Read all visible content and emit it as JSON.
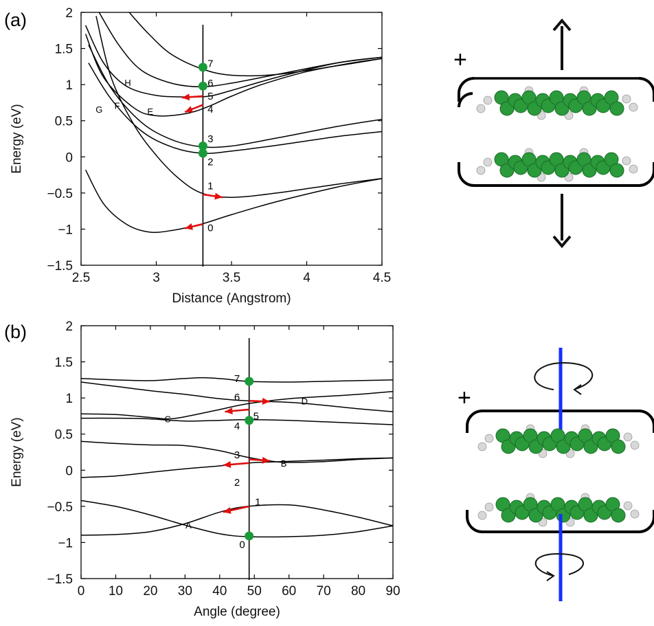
{
  "figure": {
    "panel_a_label": "(a)",
    "panel_b_label": "(b)",
    "plus_a": "+",
    "plus_b": "+",
    "colors": {
      "curve": "#000000",
      "arrow": "#e01010",
      "marker": "#1a9a3a",
      "axis_blue": "#1530ff",
      "carbon": "#2a9a3a",
      "hydrogen": "#d8d8d8"
    }
  },
  "chart_data": [
    {
      "type": "line",
      "xlabel": "Distance (Angstrom)",
      "ylabel": "Energy (eV)",
      "xlim": [
        2.5,
        4.5
      ],
      "ylim": [
        -1.5,
        2
      ],
      "xticks": [
        "2.5",
        "3",
        "3.5",
        "4",
        "4.5"
      ],
      "yticks": [
        "2",
        "1.5",
        "1",
        "0.5",
        "0",
        "−0.5",
        "−1",
        "−1.5"
      ],
      "marker_x": 3.31,
      "series": [
        {
          "x": [
            2.53,
            2.65,
            2.8,
            2.95,
            3.1,
            3.3,
            3.5,
            3.8,
            4.2,
            4.5
          ],
          "y": [
            -0.18,
            -0.65,
            -0.93,
            -1.04,
            -1.02,
            -0.93,
            -0.8,
            -0.62,
            -0.42,
            -0.3
          ]
        },
        {
          "x": [
            2.6,
            2.7,
            2.85,
            3.0,
            3.15,
            3.3,
            3.5,
            3.8,
            4.2,
            4.5
          ],
          "y": [
            1.95,
            1.1,
            0.45,
            0.02,
            -0.3,
            -0.5,
            -0.56,
            -0.5,
            -0.38,
            -0.3
          ]
        },
        {
          "x": [
            2.55,
            2.7,
            2.9,
            3.1,
            3.3,
            3.5,
            3.8,
            4.2,
            4.5
          ],
          "y": [
            1.3,
            0.8,
            0.36,
            0.14,
            0.05,
            0.08,
            0.16,
            0.28,
            0.35
          ]
        },
        {
          "x": [
            2.55,
            2.7,
            2.9,
            3.1,
            3.3,
            3.5,
            3.8,
            4.2,
            4.5
          ],
          "y": [
            1.55,
            0.95,
            0.48,
            0.24,
            0.14,
            0.15,
            0.26,
            0.42,
            0.52
          ]
        },
        {
          "x": [
            2.53,
            2.65,
            2.85,
            3.0,
            3.2,
            3.35,
            3.5,
            3.7,
            4.0,
            4.3,
            4.5
          ],
          "y": [
            1.7,
            1.1,
            0.68,
            0.57,
            0.6,
            0.7,
            0.84,
            1.0,
            1.18,
            1.3,
            1.36
          ]
        },
        {
          "x": [
            2.53,
            2.65,
            2.8,
            3.0,
            3.2,
            3.35,
            3.5,
            3.8,
            4.2,
            4.5
          ],
          "y": [
            1.82,
            1.3,
            0.98,
            0.85,
            0.83,
            0.84,
            0.92,
            1.1,
            1.3,
            1.38
          ]
        },
        {
          "x": [
            2.62,
            2.75,
            2.9,
            3.1,
            3.3,
            3.5,
            3.8,
            4.2,
            4.5
          ],
          "y": [
            2.0,
            1.55,
            1.2,
            1.02,
            0.97,
            1.02,
            1.14,
            1.3,
            1.38
          ]
        },
        {
          "x": [
            2.82,
            2.95,
            3.1,
            3.3,
            3.5,
            3.8,
            4.2,
            4.5
          ],
          "y": [
            2.0,
            1.7,
            1.42,
            1.22,
            1.13,
            1.14,
            1.26,
            1.36
          ]
        }
      ],
      "points": [
        {
          "x": 3.31,
          "y": 1.24
        },
        {
          "x": 3.31,
          "y": 0.98
        },
        {
          "x": 3.31,
          "y": 0.15
        },
        {
          "x": 3.31,
          "y": 0.05
        }
      ],
      "arrows": [
        {
          "x1": 3.31,
          "y1": 0.84,
          "x2": 3.17,
          "y2": 0.82
        },
        {
          "x1": 3.31,
          "y1": 0.72,
          "x2": 3.19,
          "y2": 0.62
        },
        {
          "x1": 3.31,
          "y1": -0.52,
          "x2": 3.44,
          "y2": -0.56
        },
        {
          "x1": 3.31,
          "y1": -0.93,
          "x2": 3.19,
          "y2": -0.99
        }
      ],
      "annotations": [
        {
          "text": "7",
          "x": 3.36,
          "y": 1.29,
          "size": "num"
        },
        {
          "text": "6",
          "x": 3.36,
          "y": 1.02,
          "size": "num"
        },
        {
          "text": "5",
          "x": 3.36,
          "y": 0.84,
          "size": "num"
        },
        {
          "text": "4",
          "x": 3.36,
          "y": 0.66,
          "size": "num"
        },
        {
          "text": "3",
          "x": 3.36,
          "y": 0.25,
          "size": "num"
        },
        {
          "text": "2",
          "x": 3.36,
          "y": -0.07,
          "size": "num"
        },
        {
          "text": "1",
          "x": 3.36,
          "y": -0.4,
          "size": "num"
        },
        {
          "text": "0",
          "x": 3.36,
          "y": -0.98,
          "size": "num"
        },
        {
          "text": "H",
          "x": 2.81,
          "y": 1.03,
          "size": "small"
        },
        {
          "text": "G",
          "x": 2.62,
          "y": 0.66,
          "size": "small"
        },
        {
          "text": "F",
          "x": 2.74,
          "y": 0.71,
          "size": "small"
        },
        {
          "text": "E",
          "x": 2.96,
          "y": 0.63,
          "size": "small"
        }
      ]
    },
    {
      "type": "line",
      "xlabel": "Angle (degree)",
      "ylabel": "Energy (eV)",
      "xlim": [
        0,
        90
      ],
      "ylim": [
        -1.5,
        2
      ],
      "xticks": [
        "0",
        "10",
        "20",
        "30",
        "40",
        "50",
        "60",
        "70",
        "80",
        "90"
      ],
      "yticks": [
        "2",
        "1.5",
        "1",
        "0.5",
        "0",
        "−0.5",
        "−1",
        "−1.5"
      ],
      "marker_x": 48.5,
      "series": [
        {
          "x": [
            0,
            10,
            20,
            30,
            40,
            48,
            60,
            70,
            80,
            90
          ],
          "y": [
            -0.42,
            -0.5,
            -0.62,
            -0.76,
            -0.88,
            -0.92,
            -0.92,
            -0.9,
            -0.85,
            -0.77
          ]
        },
        {
          "x": [
            0,
            10,
            20,
            30,
            40,
            48,
            60,
            70,
            80,
            90
          ],
          "y": [
            -0.9,
            -0.89,
            -0.85,
            -0.74,
            -0.58,
            -0.5,
            -0.48,
            -0.55,
            -0.65,
            -0.77
          ]
        },
        {
          "x": [
            0,
            10,
            20,
            30,
            40,
            48,
            58,
            70,
            80,
            90
          ],
          "y": [
            -0.1,
            -0.08,
            -0.03,
            0.02,
            0.06,
            0.1,
            0.12,
            0.14,
            0.16,
            0.17
          ]
        },
        {
          "x": [
            0,
            10,
            20,
            30,
            40,
            48,
            58,
            70,
            80,
            90
          ],
          "y": [
            0.4,
            0.37,
            0.35,
            0.34,
            0.27,
            0.18,
            0.11,
            0.12,
            0.15,
            0.17
          ]
        },
        {
          "x": [
            0,
            10,
            20,
            30,
            40,
            48,
            60,
            70,
            80,
            90
          ],
          "y": [
            0.72,
            0.72,
            0.71,
            0.68,
            0.69,
            0.7,
            0.69,
            0.67,
            0.65,
            0.63
          ]
        },
        {
          "x": [
            0,
            10,
            20,
            25,
            30,
            40,
            48,
            60,
            70,
            80,
            90
          ],
          "y": [
            0.78,
            0.77,
            0.73,
            0.71,
            0.74,
            0.84,
            0.92,
            0.99,
            1.02,
            1.05,
            1.09
          ]
        },
        {
          "x": [
            0,
            10,
            20,
            30,
            40,
            48,
            60,
            70,
            80,
            90
          ],
          "y": [
            1.22,
            1.16,
            1.1,
            1.05,
            0.99,
            0.96,
            0.94,
            0.9,
            0.85,
            0.81
          ]
        },
        {
          "x": [
            0,
            10,
            20,
            30,
            36,
            42,
            48,
            60,
            70,
            80,
            90
          ],
          "y": [
            1.27,
            1.25,
            1.24,
            1.27,
            1.28,
            1.26,
            1.23,
            1.22,
            1.23,
            1.24,
            1.25
          ]
        }
      ],
      "points": [
        {
          "x": 48.5,
          "y": 1.23
        },
        {
          "x": 48.5,
          "y": 0.69
        },
        {
          "x": 48.5,
          "y": -0.91
        }
      ],
      "arrows": [
        {
          "x1": 48.5,
          "y1": 0.96,
          "x2": 54.5,
          "y2": 0.95
        },
        {
          "x1": 48.5,
          "y1": 0.84,
          "x2": 41.5,
          "y2": 0.81
        },
        {
          "x1": 48.5,
          "y1": 0.15,
          "x2": 54.5,
          "y2": 0.13
        },
        {
          "x1": 48.5,
          "y1": 0.1,
          "x2": 41.0,
          "y2": 0.07
        },
        {
          "x1": 48.5,
          "y1": -0.5,
          "x2": 41.0,
          "y2": -0.58
        }
      ],
      "annotations": [
        {
          "text": "7",
          "x": 45.0,
          "y": 1.27,
          "size": "num"
        },
        {
          "text": "6",
          "x": 45.0,
          "y": 1.01,
          "size": "num"
        },
        {
          "text": "5",
          "x": 50.5,
          "y": 0.75,
          "size": "num"
        },
        {
          "text": "4",
          "x": 45.0,
          "y": 0.61,
          "size": "num"
        },
        {
          "text": "3",
          "x": 45.0,
          "y": 0.21,
          "size": "num"
        },
        {
          "text": "2",
          "x": 45.0,
          "y": -0.17,
          "size": "num"
        },
        {
          "text": "1",
          "x": 51.0,
          "y": -0.44,
          "size": "num"
        },
        {
          "text": "0",
          "x": 46.5,
          "y": -1.03,
          "size": "num"
        },
        {
          "text": "A",
          "x": 31.0,
          "y": -0.76,
          "size": "small"
        },
        {
          "text": "B",
          "x": 58.5,
          "y": 0.1,
          "size": "small"
        },
        {
          "text": "C",
          "x": 25.0,
          "y": 0.71,
          "size": "small"
        },
        {
          "text": "D",
          "x": 64.5,
          "y": 0.96,
          "size": "small"
        }
      ]
    }
  ]
}
